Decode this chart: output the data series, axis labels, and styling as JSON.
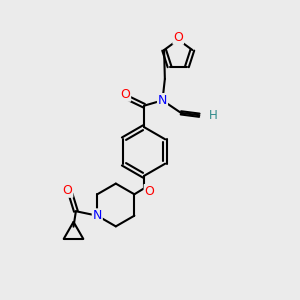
{
  "background_color": "#ebebeb",
  "bond_color": "#000000",
  "bond_width": 1.5,
  "atom_colors": {
    "O": "#ff0000",
    "N": "#0000ff",
    "C": "#000000",
    "H": "#2e8b8b"
  },
  "font_size_atom": 9
}
